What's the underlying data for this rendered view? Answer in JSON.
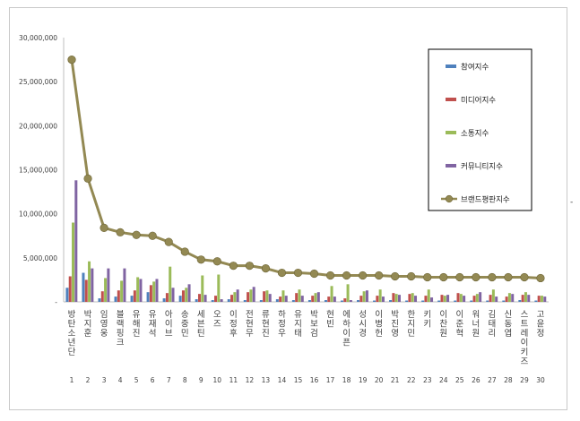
{
  "chart_data": {
    "type": "bar",
    "title": "",
    "xlabel": "",
    "ylabel": "",
    "ylim": [
      0,
      30000000
    ],
    "yticks": [
      "30,000,000",
      "25,000,000",
      "20,000,000",
      "15,000,000",
      "10,000,000",
      "5,000,000",
      "-"
    ],
    "grid": false,
    "legend_position": "right",
    "categories": [
      "방탄소년단",
      "박지훈",
      "임영웅",
      "블랙핑크",
      "유해진",
      "유재석",
      "아이브",
      "송중민",
      "세븐틴",
      "오즈",
      "이정후",
      "전현무",
      "류현진",
      "하정우",
      "유지태",
      "박보검",
      "현빈",
      "에하이픈",
      "성시경",
      "이병헌",
      "박진영",
      "한지민",
      "키키",
      "이찬원",
      "이준혁",
      "워너원",
      "김태리",
      "신동엽",
      "스트레이키즈",
      "고윤정"
    ],
    "ranks": [
      "1",
      "2",
      "3",
      "4",
      "5",
      "6",
      "7",
      "8",
      "9",
      "10",
      "11",
      "12",
      "13",
      "14",
      "15",
      "16",
      "17",
      "18",
      "19",
      "20",
      "21",
      "22",
      "23",
      "24",
      "25",
      "26",
      "27",
      "28",
      "29",
      "30"
    ],
    "series": [
      {
        "name": "참여지수",
        "color": "#4f81bd",
        "values": [
          1600000,
          3300000,
          400000,
          600000,
          700000,
          1100000,
          400000,
          700000,
          300000,
          200000,
          300000,
          200000,
          200000,
          300000,
          200000,
          200000,
          200000,
          150000,
          200000,
          150000,
          200000,
          150000,
          150000,
          150000,
          150000,
          150000,
          150000,
          150000,
          200000,
          150000
        ]
      },
      {
        "name": "미디어지수",
        "color": "#c0504d",
        "values": [
          2900000,
          2500000,
          1200000,
          1300000,
          1300000,
          1900000,
          1000000,
          1300000,
          900000,
          700000,
          800000,
          1100000,
          1200000,
          600000,
          1000000,
          700000,
          600000,
          400000,
          700000,
          700000,
          1000000,
          900000,
          700000,
          800000,
          1000000,
          700000,
          800000,
          600000,
          800000,
          700000
        ]
      },
      {
        "name": "소통지수",
        "color": "#9bbb59",
        "values": [
          9000000,
          4600000,
          2700000,
          2400000,
          2800000,
          2300000,
          4000000,
          1600000,
          3000000,
          3100000,
          1100000,
          1400000,
          1300000,
          1300000,
          1400000,
          1000000,
          1800000,
          2000000,
          1200000,
          1400000,
          900000,
          1000000,
          1400000,
          700000,
          900000,
          900000,
          1400000,
          1000000,
          1100000,
          700000
        ]
      },
      {
        "name": "커뮤니티지수",
        "color": "#8064a2",
        "values": [
          13800000,
          3800000,
          3800000,
          3800000,
          2600000,
          2600000,
          1600000,
          2000000,
          800000,
          300000,
          1400000,
          1700000,
          900000,
          700000,
          700000,
          1100000,
          600000,
          200000,
          1300000,
          600000,
          800000,
          700000,
          500000,
          800000,
          700000,
          1100000,
          600000,
          900000,
          800000,
          600000
        ]
      },
      {
        "name": "브랜드평판지수",
        "color": "#938953",
        "type": "line",
        "values": [
          27500000,
          14000000,
          8400000,
          7900000,
          7600000,
          7500000,
          6800000,
          5700000,
          4800000,
          4600000,
          4100000,
          4100000,
          3800000,
          3300000,
          3300000,
          3200000,
          3000000,
          3000000,
          3000000,
          3000000,
          2900000,
          2900000,
          2800000,
          2800000,
          2800000,
          2800000,
          2800000,
          2800000,
          2800000,
          2700000
        ]
      }
    ]
  }
}
